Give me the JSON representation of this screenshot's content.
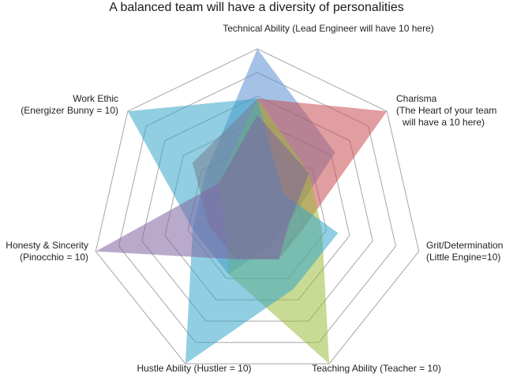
{
  "chart_data": {
    "type": "radar",
    "title": "A balanced team will have a diversity of personalities",
    "axes": [
      {
        "lines": [
          "Technical Ability (Lead Engineer will have 10 here)"
        ]
      },
      {
        "lines": [
          "Charisma",
          "(The Heart of your team",
          "will have a 10 here)"
        ]
      },
      {
        "lines": [
          "Grit/Determination",
          "(Little Engine=10)"
        ]
      },
      {
        "lines": [
          "Teaching Ability (Teacher = 10)"
        ]
      },
      {
        "lines": [
          "Hustle Ability (Hustler = 10)"
        ]
      },
      {
        "lines": [
          "Honesty & Sincerity",
          "(Pinocchio = 10)"
        ]
      },
      {
        "lines": [
          "Work Ethic",
          "(Energizer Bunny = 10)"
        ]
      }
    ],
    "range": [
      0,
      10
    ],
    "rings": 7,
    "series": [
      {
        "values": [
          10,
          6,
          2,
          2,
          4,
          4,
          4
        ],
        "color": "#5b8fd1"
      },
      {
        "values": [
          7,
          10,
          3,
          3,
          3,
          3,
          5
        ],
        "color": "#c84f52"
      },
      {
        "values": [
          7,
          4,
          4,
          10,
          4,
          2,
          3
        ],
        "color": "#9bbb3b"
      },
      {
        "values": [
          7,
          2,
          5,
          5,
          10,
          4,
          10
        ],
        "color": "#36a6c8"
      },
      {
        "values": [
          6,
          4,
          2,
          3,
          3,
          10,
          3
        ],
        "color": "#8064a2"
      }
    ]
  }
}
